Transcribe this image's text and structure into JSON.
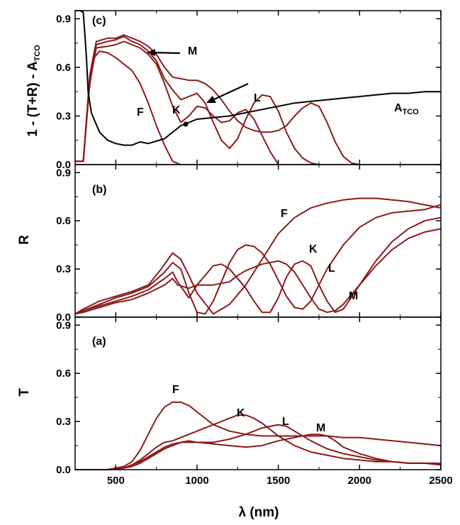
{
  "figure": {
    "xlabel": "λ (nm)",
    "colors": {
      "sample": "#8B1A1A",
      "reference": "#000000"
    }
  },
  "chart_data": [
    {
      "type": "line",
      "panel": "c",
      "panel_label": "(c)",
      "ylabel": {
        "main": "1 - (T+R) - A",
        "sub": "TCO"
      },
      "xlim": [
        250,
        2500
      ],
      "ylim": [
        0,
        0.95
      ],
      "x_ticks": [
        500,
        1000,
        1500,
        2000,
        2500
      ],
      "y_ticks": [
        "0.0",
        "0.3",
        "0.6",
        "0.9"
      ],
      "y_tick_values": [
        0,
        0.3,
        0.6,
        0.9
      ],
      "annotations": [
        "M",
        "L",
        "F",
        "K"
      ],
      "curve_label": {
        "main": "A",
        "sub": "TCO"
      },
      "series": [
        {
          "name": "F",
          "color": "#8B1A1A",
          "x": [
            250,
            300,
            330,
            360,
            400,
            450,
            500,
            550,
            600,
            650,
            700,
            750,
            800,
            850,
            900
          ],
          "y": [
            0.02,
            0.02,
            0.4,
            0.65,
            0.7,
            0.69,
            0.66,
            0.62,
            0.58,
            0.5,
            0.38,
            0.24,
            0.12,
            0.02,
            0.0
          ]
        },
        {
          "name": "K",
          "color": "#8B1A1A",
          "x": [
            250,
            300,
            340,
            380,
            450,
            500,
            550,
            600,
            650,
            700,
            750,
            800,
            850,
            900,
            950,
            1000,
            1050,
            1100,
            1150,
            1200,
            1250,
            1300,
            1350,
            1400,
            1450,
            1500
          ],
          "y": [
            0.02,
            0.02,
            0.5,
            0.72,
            0.73,
            0.74,
            0.76,
            0.74,
            0.72,
            0.68,
            0.62,
            0.5,
            0.36,
            0.26,
            0.3,
            0.36,
            0.35,
            0.3,
            0.26,
            0.27,
            0.32,
            0.34,
            0.28,
            0.18,
            0.08,
            0.0
          ]
        },
        {
          "name": "L",
          "color": "#8B1A1A",
          "x": [
            250,
            300,
            340,
            380,
            450,
            500,
            550,
            600,
            650,
            700,
            750,
            800,
            850,
            900,
            950,
            1000,
            1050,
            1100,
            1150,
            1200,
            1250,
            1300,
            1350,
            1400,
            1450,
            1500,
            1550,
            1600,
            1650,
            1700,
            1750
          ],
          "y": [
            0.02,
            0.02,
            0.52,
            0.74,
            0.76,
            0.77,
            0.79,
            0.76,
            0.74,
            0.7,
            0.64,
            0.53,
            0.46,
            0.4,
            0.42,
            0.44,
            0.38,
            0.26,
            0.15,
            0.1,
            0.16,
            0.28,
            0.38,
            0.43,
            0.42,
            0.33,
            0.2,
            0.1,
            0.04,
            0.01,
            0.0
          ]
        },
        {
          "name": "M",
          "color": "#8B1A1A",
          "x": [
            250,
            300,
            340,
            380,
            450,
            500,
            550,
            600,
            650,
            700,
            750,
            800,
            850,
            900,
            950,
            1000,
            1050,
            1100,
            1150,
            1200,
            1250,
            1300,
            1350,
            1400,
            1450,
            1500,
            1550,
            1600,
            1650,
            1700,
            1750,
            1800,
            1850,
            1900,
            1950,
            2000
          ],
          "y": [
            0.02,
            0.02,
            0.55,
            0.76,
            0.78,
            0.78,
            0.8,
            0.78,
            0.76,
            0.73,
            0.68,
            0.6,
            0.54,
            0.53,
            0.52,
            0.52,
            0.5,
            0.46,
            0.4,
            0.33,
            0.27,
            0.23,
            0.21,
            0.2,
            0.2,
            0.21,
            0.24,
            0.3,
            0.35,
            0.38,
            0.36,
            0.26,
            0.14,
            0.05,
            0.01,
            0.0
          ]
        },
        {
          "name": "A_TCO",
          "color": "#000000",
          "x": [
            250,
            280,
            300,
            310,
            320,
            330,
            350,
            400,
            450,
            500,
            550,
            600,
            650,
            700,
            800,
            900,
            1000,
            1100,
            1200,
            1300,
            1400,
            1500,
            1600,
            1700,
            1800,
            1900,
            2000,
            2100,
            2200,
            2300,
            2400,
            2500
          ],
          "y": [
            0.95,
            0.95,
            0.94,
            0.8,
            0.65,
            0.45,
            0.32,
            0.2,
            0.15,
            0.13,
            0.12,
            0.12,
            0.14,
            0.13,
            0.16,
            0.24,
            0.28,
            0.29,
            0.3,
            0.32,
            0.34,
            0.36,
            0.38,
            0.39,
            0.4,
            0.41,
            0.42,
            0.43,
            0.44,
            0.44,
            0.45,
            0.45
          ]
        }
      ]
    },
    {
      "type": "line",
      "panel": "b",
      "panel_label": "(b)",
      "ylabel": "R",
      "xlim": [
        250,
        2500
      ],
      "ylim": [
        0,
        0.95
      ],
      "x_ticks": [
        500,
        1000,
        1500,
        2000,
        2500
      ],
      "y_ticks": [
        "0.0",
        "0.3",
        "0.6",
        "0.9"
      ],
      "y_tick_values": [
        0,
        0.3,
        0.6,
        0.9
      ],
      "annotations": [
        "F",
        "K",
        "L",
        "M"
      ],
      "series": [
        {
          "name": "F",
          "color": "#8B1A1A",
          "x": [
            250,
            300,
            400,
            500,
            600,
            700,
            780,
            850,
            900,
            950,
            1000,
            1100,
            1200,
            1300,
            1350,
            1400,
            1450,
            1500,
            1600,
            1700,
            1800,
            1900,
            2000,
            2100,
            2200,
            2300,
            2400,
            2500
          ],
          "y": [
            0.02,
            0.05,
            0.1,
            0.13,
            0.16,
            0.2,
            0.3,
            0.4,
            0.36,
            0.26,
            0.15,
            0.02,
            0.08,
            0.2,
            0.28,
            0.36,
            0.44,
            0.52,
            0.62,
            0.68,
            0.71,
            0.73,
            0.74,
            0.74,
            0.73,
            0.72,
            0.7,
            0.68
          ]
        },
        {
          "name": "K",
          "color": "#8B1A1A",
          "x": [
            250,
            300,
            400,
            500,
            600,
            700,
            800,
            850,
            900,
            950,
            1000,
            1050,
            1100,
            1150,
            1200,
            1250,
            1300,
            1350,
            1400,
            1450,
            1500,
            1550,
            1600,
            1650,
            1700,
            1750,
            1800,
            1900,
            2000,
            2100,
            2200,
            2300,
            2400,
            2500
          ],
          "y": [
            0.02,
            0.04,
            0.08,
            0.12,
            0.15,
            0.19,
            0.28,
            0.34,
            0.3,
            0.15,
            0.03,
            0.02,
            0.1,
            0.22,
            0.34,
            0.42,
            0.45,
            0.44,
            0.4,
            0.33,
            0.23,
            0.13,
            0.06,
            0.05,
            0.1,
            0.2,
            0.3,
            0.45,
            0.56,
            0.62,
            0.65,
            0.66,
            0.67,
            0.7
          ]
        },
        {
          "name": "L",
          "color": "#8B1A1A",
          "x": [
            250,
            300,
            400,
            500,
            600,
            700,
            800,
            850,
            880,
            950,
            1000,
            1100,
            1150,
            1200,
            1300,
            1350,
            1400,
            1450,
            1500,
            1550,
            1600,
            1650,
            1700,
            1750,
            1800,
            1850,
            1900,
            2000,
            2100,
            2200,
            2300,
            2400,
            2500
          ],
          "y": [
            0.02,
            0.04,
            0.07,
            0.1,
            0.13,
            0.17,
            0.24,
            0.28,
            0.22,
            0.12,
            0.2,
            0.32,
            0.33,
            0.3,
            0.18,
            0.1,
            0.03,
            0.03,
            0.12,
            0.25,
            0.33,
            0.35,
            0.32,
            0.2,
            0.1,
            0.03,
            0.05,
            0.2,
            0.35,
            0.47,
            0.55,
            0.6,
            0.62
          ]
        },
        {
          "name": "M",
          "color": "#8B1A1A",
          "x": [
            250,
            300,
            400,
            500,
            600,
            700,
            800,
            850,
            880,
            950,
            1000,
            1100,
            1200,
            1250,
            1300,
            1400,
            1500,
            1550,
            1600,
            1650,
            1700,
            1750,
            1800,
            1850,
            1900,
            2000,
            2100,
            2200,
            2300,
            2400,
            2500
          ],
          "y": [
            0.02,
            0.03,
            0.06,
            0.09,
            0.11,
            0.15,
            0.2,
            0.24,
            0.2,
            0.18,
            0.2,
            0.2,
            0.22,
            0.26,
            0.29,
            0.33,
            0.35,
            0.33,
            0.28,
            0.2,
            0.12,
            0.05,
            0.03,
            0.04,
            0.08,
            0.2,
            0.32,
            0.42,
            0.49,
            0.53,
            0.55
          ]
        }
      ]
    },
    {
      "type": "line",
      "panel": "a",
      "panel_label": "(a)",
      "ylabel": "T",
      "xlim": [
        250,
        2500
      ],
      "ylim": [
        0,
        0.95
      ],
      "x_ticks": [
        500,
        1000,
        1500,
        2000,
        2500
      ],
      "y_ticks": [
        "0.0",
        "0.3",
        "0.6",
        "0.9"
      ],
      "y_tick_values": [
        0,
        0.3,
        0.6,
        0.9
      ],
      "annotations": [
        "F",
        "K",
        "L",
        "M"
      ],
      "series": [
        {
          "name": "F",
          "color": "#8B1A1A",
          "x": [
            250,
            350,
            450,
            550,
            600,
            650,
            700,
            750,
            800,
            850,
            900,
            950,
            1000,
            1050,
            1100,
            1200,
            1300,
            1400,
            1500,
            1600,
            1700,
            1800,
            1900,
            2000,
            2100,
            2200,
            2300,
            2400,
            2500
          ],
          "y": [
            0,
            0,
            0,
            0.02,
            0.05,
            0.12,
            0.22,
            0.32,
            0.39,
            0.42,
            0.42,
            0.4,
            0.36,
            0.32,
            0.28,
            0.24,
            0.22,
            0.21,
            0.21,
            0.21,
            0.21,
            0.21,
            0.2,
            0.2,
            0.19,
            0.18,
            0.17,
            0.16,
            0.15
          ]
        },
        {
          "name": "K",
          "color": "#8B1A1A",
          "x": [
            250,
            450,
            550,
            600,
            650,
            700,
            750,
            800,
            850,
            900,
            1000,
            1100,
            1200,
            1250,
            1300,
            1350,
            1400,
            1450,
            1500,
            1600,
            1700,
            1800,
            1900,
            2000,
            2100,
            2200,
            2300,
            2400,
            2500
          ],
          "y": [
            0,
            0,
            0.01,
            0.03,
            0.06,
            0.1,
            0.14,
            0.17,
            0.18,
            0.2,
            0.24,
            0.28,
            0.32,
            0.34,
            0.34,
            0.32,
            0.29,
            0.25,
            0.21,
            0.15,
            0.11,
            0.09,
            0.07,
            0.06,
            0.05,
            0.05,
            0.04,
            0.04,
            0.04
          ]
        },
        {
          "name": "L",
          "color": "#8B1A1A",
          "x": [
            250,
            450,
            550,
            600,
            650,
            700,
            750,
            800,
            850,
            900,
            1000,
            1100,
            1200,
            1300,
            1400,
            1450,
            1500,
            1550,
            1600,
            1700,
            1800,
            1900,
            2000,
            2100,
            2200,
            2300,
            2400,
            2500
          ],
          "y": [
            0,
            0,
            0.01,
            0.03,
            0.05,
            0.08,
            0.11,
            0.14,
            0.16,
            0.17,
            0.17,
            0.17,
            0.19,
            0.22,
            0.26,
            0.27,
            0.28,
            0.27,
            0.24,
            0.18,
            0.13,
            0.1,
            0.08,
            0.06,
            0.05,
            0.04,
            0.04,
            0.03
          ]
        },
        {
          "name": "M",
          "color": "#8B1A1A",
          "x": [
            250,
            450,
            550,
            600,
            650,
            700,
            750,
            800,
            850,
            900,
            950,
            1000,
            1100,
            1200,
            1300,
            1400,
            1500,
            1600,
            1700,
            1750,
            1800,
            1850,
            1900,
            2000,
            2100,
            2200,
            2300,
            2400,
            2500
          ],
          "y": [
            0,
            0,
            0.01,
            0.02,
            0.04,
            0.07,
            0.1,
            0.13,
            0.15,
            0.17,
            0.18,
            0.17,
            0.16,
            0.15,
            0.14,
            0.15,
            0.18,
            0.2,
            0.22,
            0.22,
            0.21,
            0.18,
            0.14,
            0.1,
            0.07,
            0.05,
            0.04,
            0.04,
            0.03
          ]
        }
      ]
    }
  ]
}
